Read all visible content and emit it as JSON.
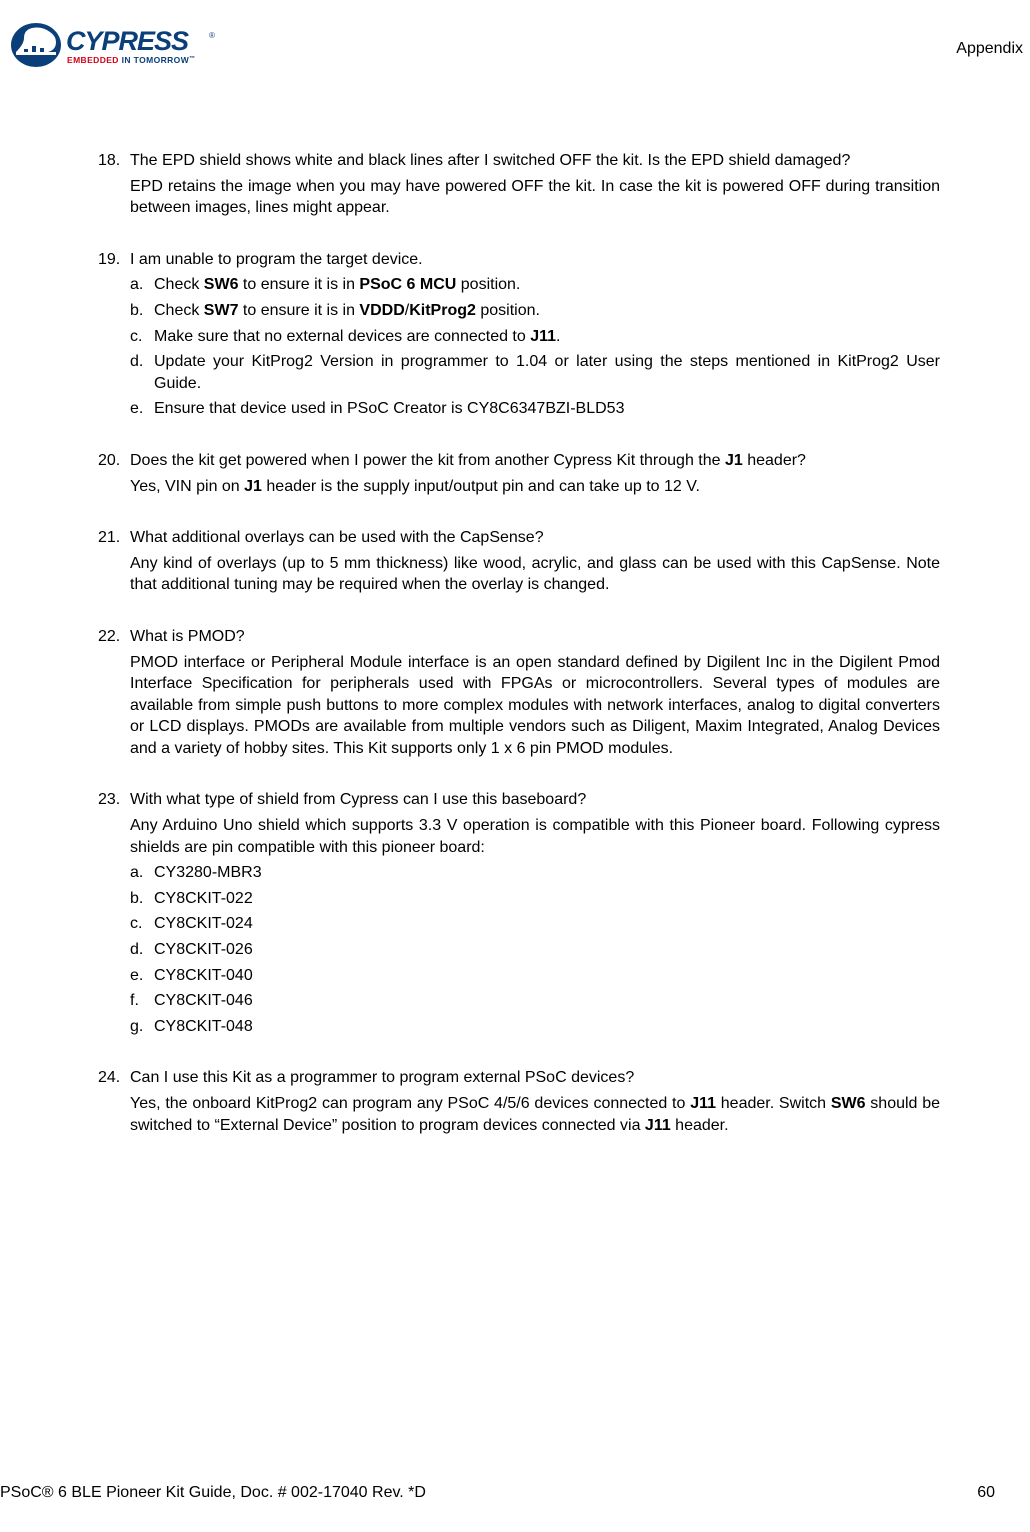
{
  "header": {
    "section_label": "Appendix",
    "logo": {
      "brand": "CYPRESS",
      "tagline": "EMBEDDED IN TOMORROW",
      "primary_color": "#0b3f7a",
      "accent_color": "#d0021b",
      "trademark": "™"
    }
  },
  "faq": {
    "items": [
      {
        "number": "18.",
        "question_html": " The EPD shield shows white and black lines after I switched OFF the kit. Is the EPD shield damaged?",
        "answer_html": "EPD retains the image when you may have powered OFF the kit. In case the kit is powered OFF during transition between images, lines might appear."
      },
      {
        "number": "19.",
        "question_html": "I am unable to program the target device.",
        "sub": [
          {
            "letter": "a.",
            "html": "Check <b>SW6</b> to ensure it is in <b>PSoC 6 MCU</b> position."
          },
          {
            "letter": "b.",
            "html": "Check <b>SW7</b> to ensure it is in <b>VDDD</b>/<b>KitProg2</b> position."
          },
          {
            "letter": "c.",
            "html": "Make sure that no external devices are connected to <b>J11</b>."
          },
          {
            "letter": "d.",
            "html": "Update your KitProg2 Version in programmer to 1.04 or later using the steps mentioned in KitProg2 User Guide."
          },
          {
            "letter": "e.",
            "html": "Ensure that device used in PSoC Creator is CY8C6347BZI-BLD53"
          }
        ]
      },
      {
        "number": "20.",
        "question_html": "Does the kit get powered when I power the kit from another Cypress Kit through the <b>J1</b> header?",
        "answer_html": "Yes, VIN pin on <b>J1</b> header is the supply input/output pin and can take up to 12 V."
      },
      {
        "number": "21.",
        "question_html": "What additional overlays can be used with the CapSense?",
        "answer_html": "Any kind of overlays (up to 5 mm thickness) like wood, acrylic, and glass can be used with this CapSense. Note that additional tuning may be required when the overlay is changed."
      },
      {
        "number": "22.",
        "question_html": "What is PMOD?",
        "answer_html": "PMOD interface or Peripheral Module interface is an open standard defined by Digilent Inc in the Digilent Pmod Interface Specification for peripherals used with FPGAs or microcontrollers. Several types of modules are available from simple push buttons to more complex modules with network interfaces, analog to digital converters or LCD displays. PMODs are available from multiple vendors such as Diligent, Maxim Integrated, Analog Devices and a variety of hobby sites. This Kit supports only 1 x 6 pin PMOD modules."
      },
      {
        "number": "23.",
        "question_html": "With what type of shield from Cypress can I use this baseboard?",
        "answer_html": "Any Arduino Uno shield which supports 3.3 V operation is compatible with this Pioneer board. Following cypress shields are pin compatible with this pioneer board:",
        "sub": [
          {
            "letter": "a.",
            "html": "CY3280-MBR3"
          },
          {
            "letter": "b.",
            "html": "CY8CKIT-022"
          },
          {
            "letter": "c.",
            "html": "CY8CKIT-024"
          },
          {
            "letter": "d.",
            "html": "CY8CKIT-026"
          },
          {
            "letter": "e.",
            "html": "CY8CKIT-040"
          },
          {
            "letter": "f.",
            "html": "CY8CKIT-046"
          },
          {
            "letter": "g.",
            "html": "CY8CKIT-048"
          }
        ]
      },
      {
        "number": "24.",
        "question_html": "Can I use this Kit as a programmer to program external PSoC devices?",
        "answer_html": "Yes, the onboard KitProg2 can program any PSoC 4/5/6 devices connected to <b>J11</b> header. Switch <b>SW6</b> should be switched to “External Device” position to program devices connected via <b>J11</b> header."
      }
    ]
  },
  "footer": {
    "doc_title": "PSoC® 6 BLE Pioneer Kit Guide, Doc. # 002-17040 Rev. *D",
    "page_number": "60"
  }
}
